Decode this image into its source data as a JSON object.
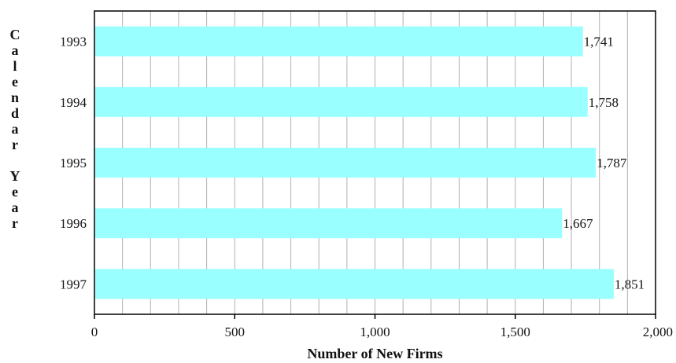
{
  "chart_data": {
    "type": "bar",
    "orientation": "horizontal",
    "categories": [
      "1993",
      "1994",
      "1995",
      "1996",
      "1997"
    ],
    "values": [
      1741,
      1758,
      1787,
      1667,
      1851
    ],
    "value_labels": [
      "1,741",
      "1,758",
      "1,787",
      "1,667",
      "1,851"
    ],
    "xlabel": "Number of New Firms",
    "ylabel": "Calendar Year",
    "xlim": [
      0,
      2000
    ],
    "xticks": [
      0,
      500,
      1000,
      1500,
      2000
    ],
    "xtick_labels": [
      "0",
      "500",
      "1,000",
      "1,500",
      "2,000"
    ],
    "grid": true,
    "legend": "none",
    "bar_color": "#99ffff",
    "grid_color": "#b0b0b0",
    "axis_color": "#000000"
  }
}
